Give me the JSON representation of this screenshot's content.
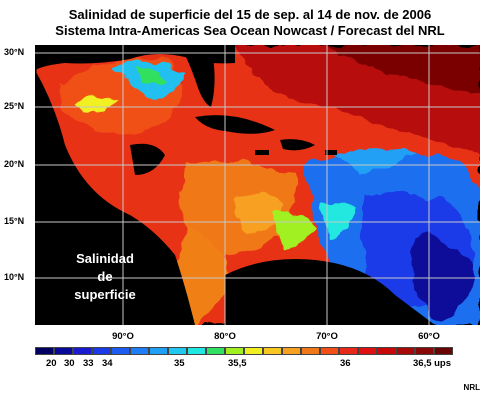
{
  "title_line1": "Salinidad de superficie del 15 de sep. al 14 de nov. de  2006",
  "title_line2": "Sistema Intra-Americas Sea Ocean Nowcast / Forecast del NRL",
  "map": {
    "lat_labels": [
      "30°N",
      "25°N",
      "20°N",
      "15°N",
      "10°N"
    ],
    "lon_labels": [
      "90°O",
      "80°O",
      "70°O",
      "60°O"
    ],
    "inset_label_lines": [
      "Salinidad",
      "de",
      "superficie"
    ],
    "land_color": "#000000"
  },
  "colorbar": {
    "colors": [
      "#000060",
      "#0a0a9a",
      "#1a1ad0",
      "#1a3ae8",
      "#1e5cf0",
      "#1e7ef5",
      "#20a0f5",
      "#20c8f0",
      "#20e8e0",
      "#30e060",
      "#a0f020",
      "#f0f020",
      "#f8c820",
      "#f8a020",
      "#f07818",
      "#f05018",
      "#e82818",
      "#e01010",
      "#c80808",
      "#a80808",
      "#880808",
      "#680404"
    ],
    "tick_labels": [
      "20",
      "30",
      "33",
      "34",
      "35",
      "35,5",
      "36",
      "36,5 ups"
    ]
  },
  "credit": "NRL"
}
